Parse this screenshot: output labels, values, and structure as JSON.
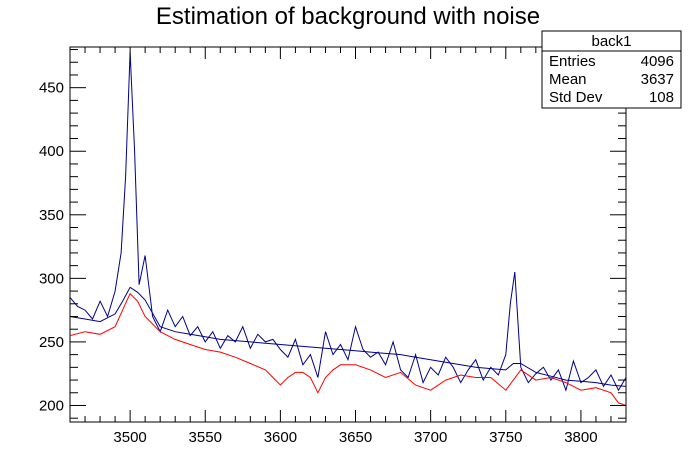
{
  "chart_data": {
    "type": "line",
    "title": "Estimation of background with noise",
    "xlabel": "",
    "ylabel": "",
    "xlim": [
      3460,
      3830
    ],
    "ylim": [
      187,
      482
    ],
    "x_ticks": [
      3500,
      3550,
      3600,
      3650,
      3700,
      3750,
      3800
    ],
    "y_ticks": [
      200,
      250,
      300,
      350,
      400,
      450
    ],
    "grid": false,
    "stats_box": {
      "name": "back1",
      "rows": [
        {
          "label": "Entries",
          "value": "4096"
        },
        {
          "label": "Mean",
          "value": "3637"
        },
        {
          "label": "Std Dev",
          "value": "108"
        }
      ],
      "placement": "top-right"
    },
    "series": [
      {
        "color": "#00008b",
        "x": [
          3460,
          3465,
          3470,
          3475,
          3480,
          3485,
          3490,
          3494,
          3497,
          3500,
          3503,
          3506,
          3510,
          3515,
          3520,
          3525,
          3530,
          3535,
          3540,
          3545,
          3550,
          3555,
          3560,
          3565,
          3570,
          3575,
          3580,
          3585,
          3590,
          3595,
          3600,
          3605,
          3610,
          3615,
          3620,
          3625,
          3630,
          3635,
          3640,
          3645,
          3650,
          3655,
          3660,
          3665,
          3670,
          3675,
          3680,
          3685,
          3690,
          3695,
          3700,
          3705,
          3710,
          3715,
          3720,
          3725,
          3730,
          3735,
          3740,
          3745,
          3750,
          3753,
          3756,
          3760,
          3765,
          3770,
          3775,
          3780,
          3785,
          3790,
          3795,
          3800,
          3805,
          3810,
          3815,
          3820,
          3825,
          3830
        ],
        "values": [
          285,
          278,
          275,
          268,
          282,
          270,
          290,
          320,
          380,
          478,
          400,
          295,
          318,
          270,
          258,
          275,
          262,
          270,
          255,
          262,
          250,
          258,
          245,
          255,
          250,
          262,
          245,
          256,
          250,
          252,
          244,
          238,
          252,
          232,
          240,
          222,
          258,
          240,
          248,
          236,
          262,
          244,
          238,
          242,
          232,
          250,
          228,
          222,
          240,
          218,
          230,
          224,
          238,
          230,
          218,
          228,
          236,
          220,
          230,
          224,
          240,
          280,
          305,
          230,
          218,
          225,
          230,
          220,
          228,
          212,
          235,
          218,
          222,
          228,
          215,
          224,
          212,
          222
        ]
      },
      {
        "color": "#00008b",
        "x": [
          3460,
          3470,
          3480,
          3490,
          3495,
          3500,
          3505,
          3510,
          3520,
          3530,
          3540,
          3550,
          3560,
          3570,
          3580,
          3590,
          3600,
          3610,
          3620,
          3630,
          3640,
          3650,
          3660,
          3670,
          3680,
          3690,
          3700,
          3710,
          3720,
          3730,
          3740,
          3750,
          3755,
          3760,
          3770,
          3780,
          3790,
          3800,
          3810,
          3820,
          3830
        ],
        "values": [
          270,
          268,
          266,
          272,
          282,
          293,
          289,
          283,
          262,
          258,
          256,
          254,
          252,
          251,
          250,
          249,
          248,
          247,
          246,
          245,
          244,
          243,
          242,
          241,
          240,
          238,
          236,
          234,
          232,
          230,
          229,
          228,
          233,
          233,
          226,
          223,
          220,
          219,
          218,
          216,
          215
        ]
      },
      {
        "color": "#ff0000",
        "x": [
          3460,
          3470,
          3480,
          3490,
          3495,
          3500,
          3505,
          3510,
          3520,
          3530,
          3540,
          3550,
          3560,
          3570,
          3580,
          3590,
          3595,
          3600,
          3605,
          3610,
          3615,
          3620,
          3625,
          3630,
          3635,
          3640,
          3650,
          3660,
          3670,
          3680,
          3690,
          3700,
          3710,
          3720,
          3730,
          3740,
          3750,
          3760,
          3770,
          3780,
          3790,
          3800,
          3810,
          3820,
          3825,
          3830
        ],
        "values": [
          255,
          258,
          256,
          262,
          275,
          288,
          282,
          270,
          258,
          252,
          248,
          244,
          242,
          238,
          233,
          228,
          222,
          216,
          222,
          226,
          226,
          222,
          210,
          222,
          228,
          232,
          232,
          228,
          222,
          226,
          216,
          212,
          220,
          224,
          222,
          222,
          212,
          228,
          220,
          222,
          218,
          212,
          214,
          210,
          202,
          200
        ]
      }
    ]
  }
}
